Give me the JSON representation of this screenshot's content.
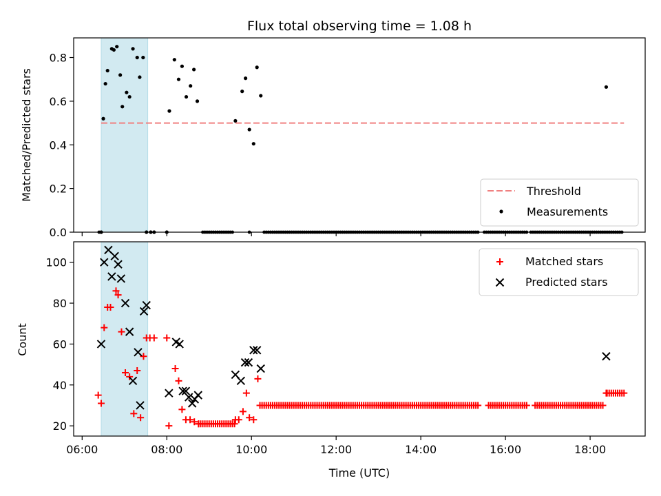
{
  "chart_data": [
    {
      "type": "scatter",
      "title": "Flux total observing time = 1.08 h",
      "xlabel": "",
      "ylabel": "Matched/Predicted stars",
      "ylim": [
        0,
        0.89
      ],
      "yticks": [
        0.0,
        0.2,
        0.4,
        0.6,
        0.8
      ],
      "ytick_labels": [
        "0.0",
        "0.2",
        "0.4",
        "0.6",
        "0.8"
      ],
      "shaded_region": {
        "x": [
          6.45,
          7.55
        ],
        "color": "#add8e6"
      },
      "threshold": {
        "name": "Threshold",
        "x": [
          6.45,
          18.8
        ],
        "y": 0.5,
        "color": "#f08080"
      },
      "measurements": {
        "name": "Measurements",
        "color": "#000000",
        "x": [
          6.45,
          6.5,
          6.55,
          6.6,
          6.7,
          6.75,
          6.82,
          6.9,
          6.95,
          7.05,
          7.12,
          7.2,
          7.3,
          7.36,
          7.44,
          7.52,
          7.62,
          7.7,
          8.0,
          8.06,
          8.18,
          8.28,
          8.36,
          8.46,
          8.56,
          8.64,
          8.72,
          9.62,
          9.78,
          9.86,
          9.95,
          10.05,
          10.13,
          10.22,
          18.38
        ],
        "y": [
          0.0,
          0.52,
          0.68,
          0.74,
          0.84,
          0.835,
          0.85,
          0.72,
          0.575,
          0.64,
          0.62,
          0.84,
          0.8,
          0.71,
          0.8,
          0.0,
          0.0,
          0.0,
          0.0,
          0.555,
          0.79,
          0.7,
          0.76,
          0.62,
          0.67,
          0.745,
          0.6,
          0.51,
          0.645,
          0.705,
          0.47,
          0.405,
          0.755,
          0.625,
          0.665
        ],
        "zeros_x_ranges": [
          [
            8.85,
            9.55
          ],
          [
            10.3,
            15.35
          ],
          [
            15.5,
            16.5
          ],
          [
            16.6,
            18.75
          ]
        ],
        "zeros_x_singles": [
          6.4,
          9.95
        ],
        "zeros_y": 0
      },
      "legend": {
        "position": "lower-right",
        "entries": [
          "Threshold",
          "Measurements"
        ]
      }
    },
    {
      "type": "scatter",
      "title": "",
      "xlabel": "Time (UTC)",
      "ylabel": "Count",
      "xlim": [
        5.8,
        19.3
      ],
      "ylim": [
        15,
        110
      ],
      "xticks": [
        6,
        8,
        10,
        12,
        14,
        16,
        18
      ],
      "xtick_labels": [
        "06:00",
        "08:00",
        "10:00",
        "12:00",
        "14:00",
        "16:00",
        "18:00"
      ],
      "yticks": [
        20,
        40,
        60,
        80,
        100
      ],
      "ytick_labels": [
        "20",
        "40",
        "60",
        "80",
        "100"
      ],
      "shaded_region": {
        "x": [
          6.45,
          7.55
        ],
        "color": "#add8e6"
      },
      "series": [
        {
          "name": "Matched stars",
          "marker": "plus",
          "color": "#ff0000",
          "x": [
            6.38,
            6.45,
            6.52,
            6.6,
            6.67,
            6.8,
            6.85,
            6.93,
            7.02,
            7.12,
            7.22,
            7.3,
            7.38,
            7.45,
            7.52,
            7.6,
            7.7,
            8.0,
            8.05,
            8.2,
            8.28,
            8.36,
            8.45,
            8.55,
            8.65,
            8.75,
            9.62,
            9.7,
            9.8,
            9.88,
            9.95,
            10.05,
            10.15,
            18.38
          ],
          "y": [
            35,
            31,
            68,
            78,
            78,
            86,
            84,
            66,
            46,
            44,
            26,
            47,
            24,
            54,
            63,
            63,
            63,
            63,
            20,
            48,
            42,
            28,
            23,
            23,
            22,
            21,
            23,
            23,
            27,
            36,
            24,
            23,
            43,
            36
          ],
          "runs": [
            {
              "x": [
                8.75,
                9.6
              ],
              "y": 21
            },
            {
              "x": [
                10.2,
                15.35
              ],
              "y": 30
            },
            {
              "x": [
                15.6,
                16.5
              ],
              "y": 30
            },
            {
              "x": [
                16.7,
                18.3
              ],
              "y": 30
            },
            {
              "x": [
                18.4,
                18.8
              ],
              "y": 36
            }
          ]
        },
        {
          "name": "Predicted stars",
          "marker": "x",
          "color": "#000000",
          "x": [
            6.45,
            6.52,
            6.62,
            6.7,
            6.77,
            6.85,
            6.92,
            7.02,
            7.12,
            7.2,
            7.32,
            7.37,
            7.46,
            7.52,
            8.05,
            8.22,
            8.3,
            8.38,
            8.45,
            8.52,
            8.6,
            8.66,
            8.74,
            9.62,
            9.75,
            9.85,
            9.93,
            10.05,
            10.13,
            10.22,
            18.38
          ],
          "y": [
            60,
            100,
            106,
            93,
            103,
            99,
            92,
            80,
            66,
            42,
            56,
            30,
            76,
            79,
            36,
            61,
            60,
            37,
            37,
            34,
            31,
            33,
            35,
            45,
            42,
            51,
            51,
            57,
            57,
            48,
            54
          ]
        }
      ],
      "legend": {
        "position": "upper-right",
        "entries": [
          "Matched stars",
          "Predicted stars"
        ]
      }
    }
  ]
}
